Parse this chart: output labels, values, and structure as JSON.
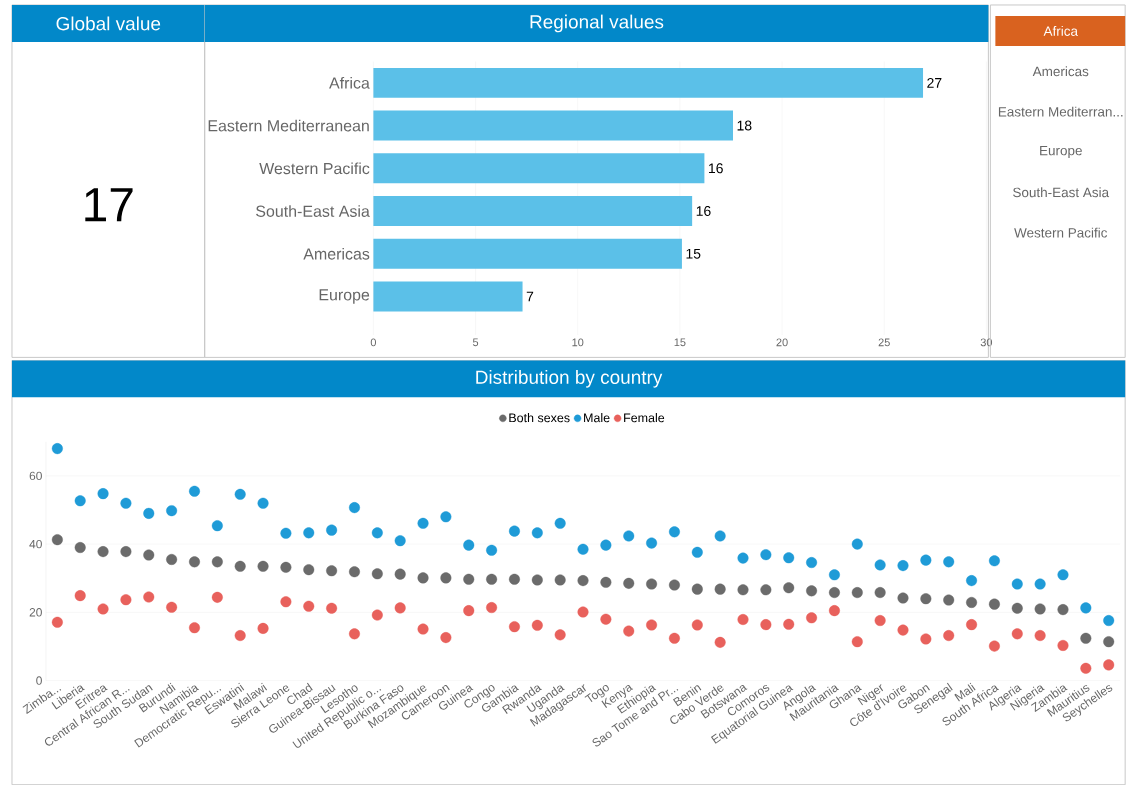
{
  "chart_data": [
    {
      "type": "other",
      "title": "Global value",
      "annotations": [
        "17"
      ]
    },
    {
      "type": "bar",
      "title": "Regional values",
      "orientation": "horizontal",
      "categories": [
        "Africa",
        "Eastern Mediterranean",
        "Western Pacific",
        "South-East Asia",
        "Americas",
        "Europe"
      ],
      "values": [
        26.9,
        17.6,
        16.2,
        15.6,
        15.1,
        7.3
      ],
      "value_labels": [
        "27",
        "18",
        "16",
        "16",
        "15",
        "7"
      ],
      "color": "#5bc0e8",
      "xlim": [
        0,
        30
      ],
      "xticks": [
        0,
        5,
        10,
        15,
        20,
        25,
        30
      ],
      "grid": "x"
    },
    {
      "type": "other",
      "annotations": [
        "Africa",
        "Americas",
        "Eastern Mediterran...",
        "Europe",
        "South-East Asia",
        "Western Pacific"
      ],
      "color": "#d9621f"
    },
    {
      "type": "scatter",
      "title": "Distribution by country",
      "categories": [
        "Zimba...",
        "Liberia",
        "Eritrea",
        "Central African R...",
        "South Sudan",
        "Burundi",
        "Namibia",
        "Democratic Repu...",
        "Eswatini",
        "Malawi",
        "Sierra Leone",
        "Chad",
        "Guinea-Bissau",
        "Lesotho",
        "United Republic o...",
        "Burkina Faso",
        "Mozambique",
        "Cameroon",
        "Guinea",
        "Congo",
        "Gambia",
        "Rwanda",
        "Uganda",
        "Madagascar",
        "Togo",
        "Kenya",
        "Ethiopia",
        "Sao Tome and Pr...",
        "Benin",
        "Cabo Verde",
        "Botswana",
        "Comoros",
        "Equatorial Guinea",
        "Angola",
        "Mauritania",
        "Ghana",
        "Niger",
        "Côte d'Ivoire",
        "Gabon",
        "Senegal",
        "Mali",
        "South Africa",
        "Algeria",
        "Nigeria",
        "Zambia",
        "Mauritius",
        "Seychelles"
      ],
      "series": [
        {
          "name": "Both sexes",
          "color": "#6b6b6b",
          "values": [
            41.3,
            39.0,
            37.8,
            37.8,
            36.8,
            35.5,
            34.8,
            34.8,
            33.5,
            33.5,
            33.2,
            32.5,
            32.2,
            31.9,
            31.3,
            31.2,
            30.1,
            30.1,
            29.7,
            29.7,
            29.7,
            29.5,
            29.5,
            29.3,
            28.8,
            28.5,
            28.3,
            28.0,
            26.8,
            26.8,
            26.6,
            26.6,
            27.2,
            26.3,
            25.8,
            25.8,
            25.8,
            24.2,
            24.0,
            23.6,
            22.9,
            22.4,
            21.2,
            21.0,
            20.8,
            12.4,
            11.4
          ]
        },
        {
          "name": "Male",
          "color": "#1f9bd7",
          "values": [
            68.0,
            52.7,
            54.8,
            52.0,
            49.0,
            49.8,
            55.5,
            45.4,
            54.6,
            52.0,
            43.2,
            43.3,
            44.1,
            50.7,
            43.3,
            41.0,
            46.1,
            48.0,
            39.7,
            38.2,
            43.8,
            43.3,
            46.1,
            38.5,
            39.7,
            42.4,
            40.3,
            43.6,
            37.6,
            42.4,
            35.9,
            36.9,
            36.0,
            34.6,
            31.0,
            40.0,
            33.9,
            33.7,
            35.3,
            34.8,
            29.3,
            35.1,
            28.3,
            28.3,
            31.0,
            21.3,
            17.6
          ]
        },
        {
          "name": "Female",
          "color": "#e8615c",
          "values": [
            17.1,
            24.9,
            21.0,
            23.7,
            24.5,
            21.5,
            15.5,
            24.4,
            13.2,
            15.3,
            23.1,
            21.8,
            21.2,
            13.7,
            19.2,
            21.3,
            15.1,
            12.6,
            20.5,
            21.4,
            15.8,
            16.2,
            13.4,
            20.1,
            18.0,
            14.5,
            16.3,
            12.4,
            16.3,
            11.2,
            17.9,
            16.4,
            16.5,
            18.4,
            20.5,
            11.4,
            17.6,
            14.8,
            12.2,
            13.2,
            16.4,
            10.1,
            13.7,
            13.2,
            10.3,
            3.6,
            4.6
          ]
        }
      ],
      "ylim": [
        0,
        70
      ],
      "yticks": [
        0,
        20,
        40,
        60
      ],
      "grid": "y",
      "legend": "top"
    }
  ]
}
